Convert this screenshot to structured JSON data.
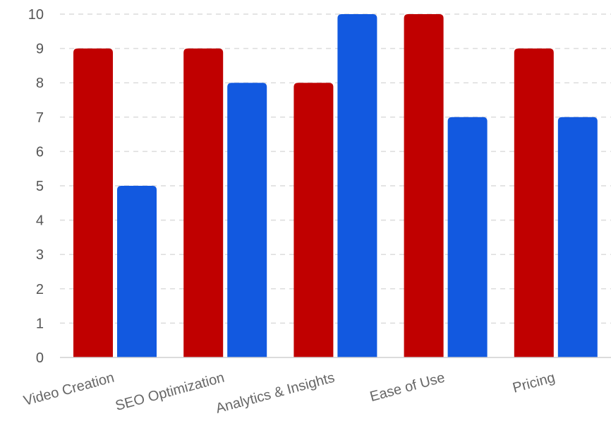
{
  "chart_data": {
    "type": "bar",
    "categories": [
      "Video Creation",
      "SEO Optimization",
      "Analytics & Insights",
      "Ease of Use",
      "Pricing"
    ],
    "series": [
      {
        "values": [
          9,
          9,
          8,
          10,
          9
        ],
        "color": "#c00000"
      },
      {
        "values": [
          5,
          8,
          10,
          7,
          7
        ],
        "color": "#1259e0"
      }
    ],
    "ylim": [
      0,
      10
    ],
    "yticks": [
      0,
      1,
      2,
      3,
      4,
      5,
      6,
      7,
      8,
      9,
      10
    ],
    "grid": true,
    "legend": "none",
    "xlabel": "",
    "ylabel": "",
    "title": ""
  }
}
